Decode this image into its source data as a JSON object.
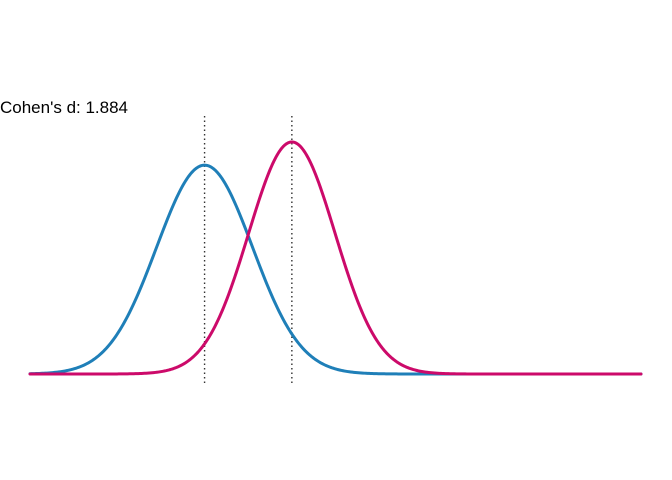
{
  "chart_data": {
    "type": "line",
    "title": "Cohen's d: 1.884",
    "xlabel": "",
    "ylabel": "",
    "xlim": [
      -4,
      10
    ],
    "ylim": [
      0,
      0.58
    ],
    "grid": false,
    "legend": "none",
    "series": [
      {
        "distribution": "normal",
        "mean": 0,
        "sd": 1.1,
        "color": "#1f7fb8"
      },
      {
        "distribution": "normal",
        "mean": 2,
        "sd": 0.99,
        "color": "#cc0a6a"
      }
    ],
    "reference_lines": [
      {
        "x": 0,
        "style": "dotted",
        "color": "#333333"
      },
      {
        "x": 2,
        "style": "dotted",
        "color": "#333333"
      }
    ]
  }
}
